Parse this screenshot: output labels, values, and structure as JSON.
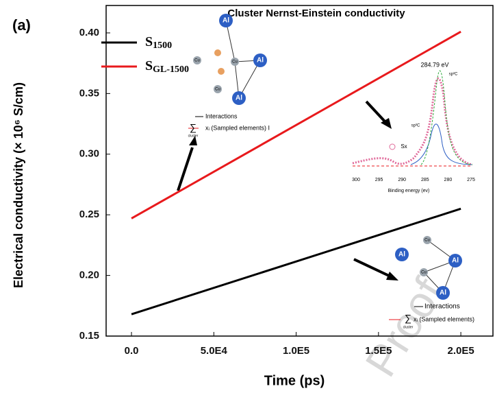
{
  "chart_data": {
    "type": "line",
    "panel_label": "(a)",
    "title": "Cluster Nernst-Einstein conductivity",
    "x_label": "Time (ps)",
    "y_label": "Electrical conductivity (× 10⁶ S/cm)",
    "x": [
      0,
      200000
    ],
    "series": [
      {
        "name": "S1500",
        "color": "#000000",
        "values": [
          0.168,
          0.255
        ]
      },
      {
        "name": "SGL-1500",
        "color": "#e8191c",
        "values": [
          0.247,
          0.401
        ]
      }
    ],
    "xlim": [
      -15400,
      219500
    ],
    "ylim": [
      0.15,
      0.4226
    ],
    "xticks": [
      {
        "value": 0,
        "label": "0.0"
      },
      {
        "value": 50000,
        "label": "5.0E4"
      },
      {
        "value": 100000,
        "label": "1.0E5"
      },
      {
        "value": 150000,
        "label": "1.5E5"
      },
      {
        "value": 200000,
        "label": "2.0E5"
      }
    ],
    "yticks": [
      {
        "value": 0.15,
        "label": "0.15"
      },
      {
        "value": 0.2,
        "label": "0.20"
      },
      {
        "value": 0.25,
        "label": "0.25"
      },
      {
        "value": 0.3,
        "label": "0.30"
      },
      {
        "value": 0.35,
        "label": "0.35"
      },
      {
        "value": 0.4,
        "label": "0.40"
      }
    ],
    "legend": "upper left",
    "annotations": [
      "Al",
      "Cu",
      "Cu",
      "Al",
      "Cu",
      "Al",
      "Interactions",
      "∑",
      "cluster",
      "xᵢ (Sampled elements) I",
      "284.79 eV",
      "sp²C",
      "sp³C",
      "Sx",
      "Binding energy (ev)",
      "Al",
      "Cu",
      "Al",
      "Cu",
      "Al",
      "Interactions",
      "∑",
      "cluster",
      "xᵢ (Sampled elements)"
    ],
    "inset_xticks": [
      300,
      295,
      290,
      285,
      280,
      275
    ],
    "watermark": "Proof"
  }
}
